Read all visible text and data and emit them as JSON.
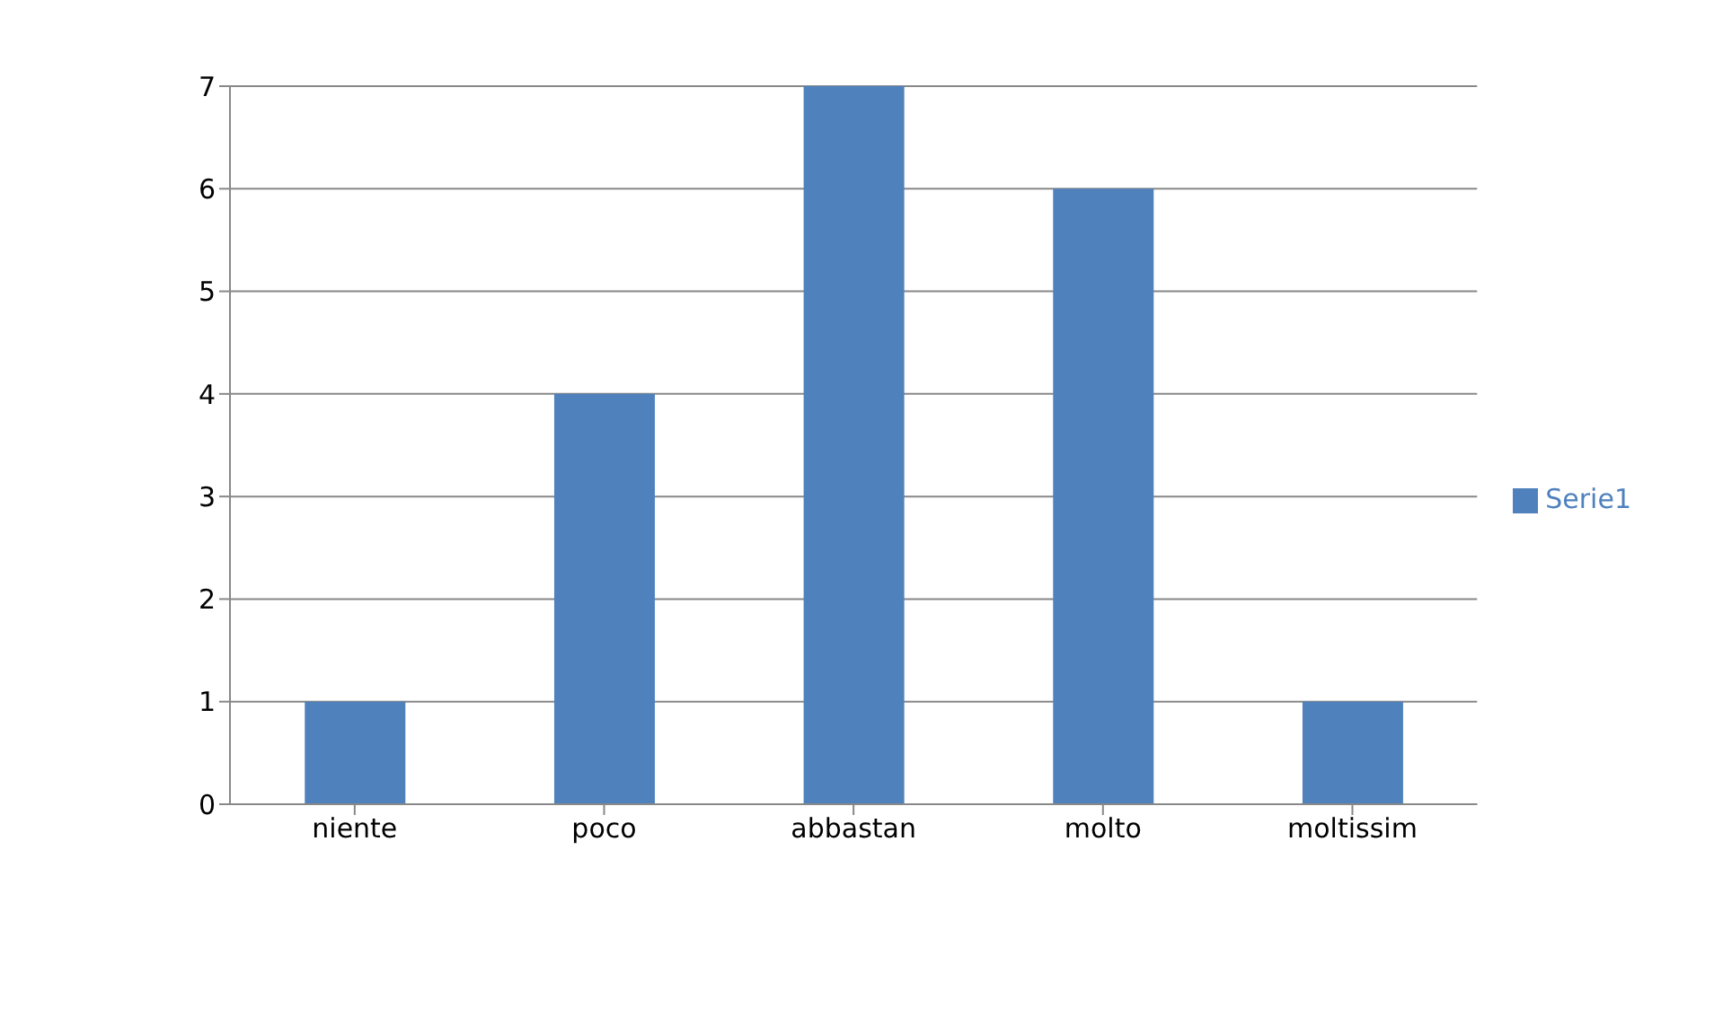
{
  "chart_data": {
    "type": "bar",
    "categories": [
      "niente",
      "poco",
      "abbastan",
      "molto",
      "moltissim"
    ],
    "series": [
      {
        "name": "Serie1",
        "color": "#4f81bd",
        "values": [
          1,
          4,
          7,
          6,
          1
        ]
      }
    ],
    "ylim": [
      0,
      7
    ],
    "yticks": [
      0,
      1,
      2,
      3,
      4,
      5,
      6,
      7
    ],
    "grid": "y",
    "legend": "right"
  }
}
